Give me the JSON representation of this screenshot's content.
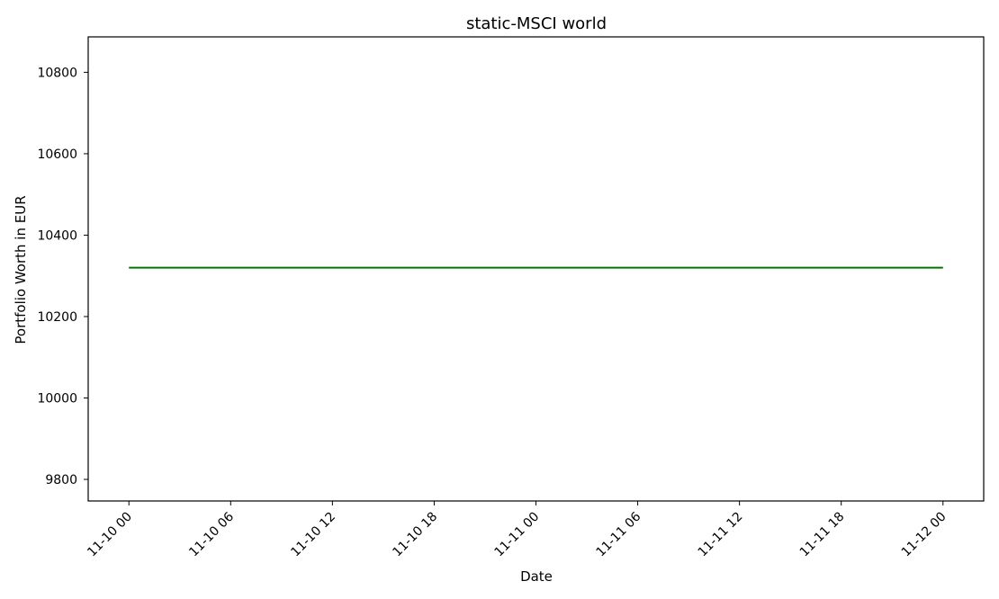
{
  "chart_data": {
    "type": "line",
    "title": "static-MSCI world",
    "xlabel": "Date",
    "ylabel": "Portfolio Worth in EUR",
    "x_ticks": [
      "11-10 00",
      "11-10 06",
      "11-10 12",
      "11-10 18",
      "11-11 00",
      "11-11 06",
      "11-11 12",
      "11-11 18",
      "11-12 00"
    ],
    "x_tick_hours": [
      0,
      6,
      12,
      18,
      24,
      30,
      36,
      42,
      48
    ],
    "xlim_hours": [
      -2.4,
      50.4
    ],
    "y_ticks": [
      9800,
      10000,
      10200,
      10400,
      10600,
      10800
    ],
    "ylim": [
      9747,
      10887
    ],
    "series": [
      {
        "name": "static-MSCI world",
        "color": "#007700",
        "x_hours": [
          0,
          48
        ],
        "values": [
          10320,
          10320
        ]
      }
    ],
    "grid": false,
    "legend": "none"
  }
}
